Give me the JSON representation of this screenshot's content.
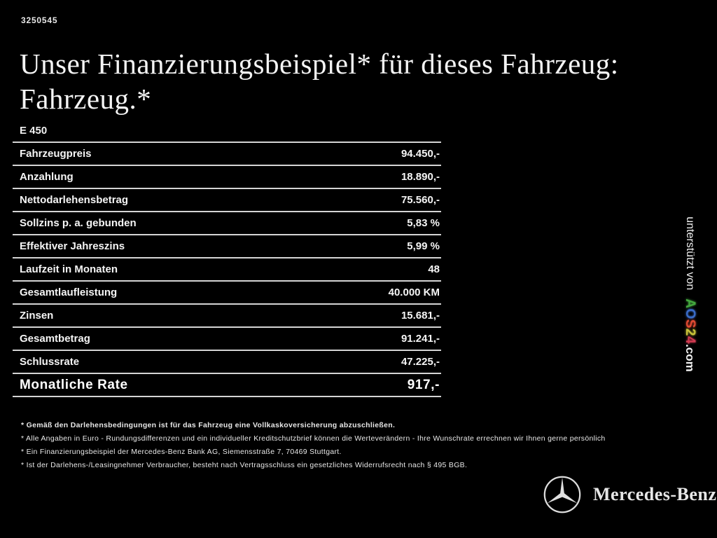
{
  "page": {
    "id_number": "3250545",
    "background": "#000000",
    "rule_color": "#d4d4d4"
  },
  "heading": {
    "line1": "Unser Finanzierungsbeispiel* für dieses Fahrzeug:",
    "line2": "Fahrzeug.*"
  },
  "model": "E 450",
  "finance_table": {
    "rows": [
      {
        "label": "Fahrzeugpreis",
        "value": "94.450,-"
      },
      {
        "label": "Anzahlung",
        "value": "18.890,-"
      },
      {
        "label": "Nettodarlehensbetrag",
        "value": "75.560,-"
      },
      {
        "label": "Sollzins p. a. gebunden",
        "value": "5,83 %"
      },
      {
        "label": "Effektiver Jahreszins",
        "value": "5,99 %"
      },
      {
        "label": "Laufzeit in Monaten",
        "value": "48"
      },
      {
        "label": "Gesamtlaufleistung",
        "value": "40.000 KM"
      },
      {
        "label": "Zinsen",
        "value": "15.681,-"
      },
      {
        "label": "Gesamtbetrag",
        "value": "91.241,-"
      },
      {
        "label": "Schlussrate",
        "value": "47.225,-"
      }
    ],
    "total_row": {
      "label": "Monatliche Rate",
      "value": "917,-"
    }
  },
  "footnotes": [
    "* Gemäß den Darlehensbedingungen ist für das Fahrzeug eine Vollkaskoversicherung abzuschließen.",
    "* Alle Angaben in Euro - Rundungsdifferenzen und ein individueller Kreditschutzbrief können die Werteverändern - Ihre Wunschrate errechnen wir Ihnen gerne persönlich",
    "* Ein Finanzierungsbeispiel der Mercedes-Benz Bank AG, Siemensstraße 7, 70469 Stuttgart.",
    "* Ist der Darlehens-/Leasingnehmer Verbraucher, besteht nach Vertragsschluss ein gesetzliches Widerrufsrecht nach § 495 BGB."
  ],
  "side_banner": {
    "prefix": "unterstützt von",
    "brand_letters": [
      {
        "char": "A",
        "color": "#44a73e"
      },
      {
        "char": "O",
        "color": "#3a6cc8"
      },
      {
        "char": "S",
        "color": "#e04a33"
      },
      {
        "char": "2",
        "color": "#c8c23a"
      },
      {
        "char": "4",
        "color": "#d03a50"
      }
    ],
    "suffix": ".com"
  },
  "footer": {
    "brand": "Mercedes-Benz",
    "logo_color": "#dddddd"
  }
}
